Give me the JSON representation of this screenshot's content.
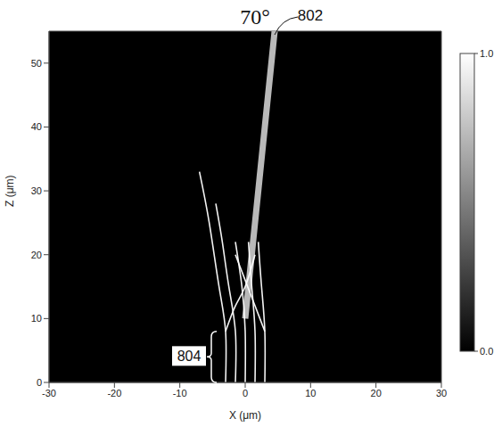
{
  "chart_data": {
    "type": "line",
    "x_label": "X (μm)",
    "y_label": "Z (μm)",
    "xlim": [
      -30,
      30
    ],
    "xticks": [
      -30,
      -20,
      -10,
      0,
      10,
      20,
      30
    ],
    "ylim": [
      0,
      55
    ],
    "yticks": [
      0,
      10,
      20,
      30,
      40,
      50
    ],
    "grid": false,
    "annotations": [
      "70°",
      "802",
      "804"
    ],
    "colorbar": {
      "range": [
        0,
        1
      ],
      "ticks": [
        {
          "value": 0,
          "label": "0.0"
        },
        {
          "value": 1,
          "label": "1.0"
        }
      ]
    },
    "series": [
      {
        "color": "#d9d9d9",
        "x": [
          0,
          1,
          2,
          3,
          4.5
        ],
        "values": [
          10,
          20,
          30,
          40,
          55
        ]
      },
      {
        "color": "#ffffff",
        "x": [
          -3,
          -3,
          -4,
          -5.5,
          -7
        ],
        "values": [
          0,
          8,
          15,
          25,
          33
        ]
      },
      {
        "color": "#ffffff",
        "x": [
          -1.5,
          -1.5,
          -2.5,
          -3.5,
          -4.5
        ],
        "values": [
          0,
          8,
          15,
          22,
          28
        ]
      },
      {
        "color": "#ffffff",
        "x": [
          0,
          0,
          -0.5,
          -1.5
        ],
        "values": [
          0,
          8,
          15,
          22
        ]
      },
      {
        "color": "#ffffff",
        "x": [
          1.5,
          1.5,
          1,
          0.5
        ],
        "values": [
          0,
          8,
          15,
          22
        ]
      },
      {
        "color": "#ffffff",
        "x": [
          3,
          3,
          2.5,
          2
        ],
        "values": [
          0,
          8,
          15,
          22
        ]
      },
      {
        "color": "#ffffff",
        "x": [
          -3,
          -1.5,
          0,
          1.5
        ],
        "values": [
          8,
          12,
          15,
          20
        ]
      },
      {
        "color": "#ffffff",
        "x": [
          3,
          1.5,
          0,
          -1.5
        ],
        "values": [
          8,
          12,
          16,
          20
        ]
      }
    ]
  }
}
